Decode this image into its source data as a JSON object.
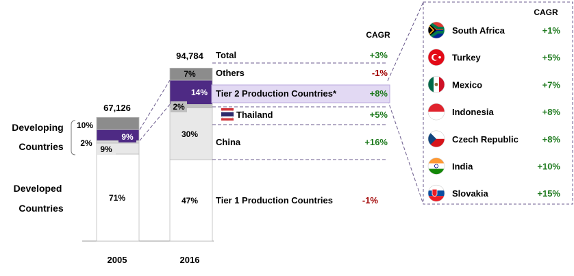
{
  "chart_data": {
    "type": "bar",
    "stacked": true,
    "categories": [
      "2005",
      "2016"
    ],
    "totals": [
      67126,
      94784
    ],
    "total_labels": [
      "67,126",
      "94,784"
    ],
    "segments_2005": [
      {
        "name": "Developed Countries",
        "value_pct": 71,
        "label": "71%",
        "color": "#ffffff"
      },
      {
        "name": "China",
        "value_pct": 9,
        "label": "9%",
        "color": "#e8e8e8"
      },
      {
        "name": "Thailand",
        "value_pct": 2,
        "label": "2%",
        "color": "#d9d9d9"
      },
      {
        "name": "Tier 2 Production Countries",
        "value_pct": 9,
        "label": "9%",
        "color": "#4e2a84"
      },
      {
        "name": "Others",
        "value_pct": 10,
        "label": "10%",
        "color": "#8c8c8c"
      }
    ],
    "segments_2016": [
      {
        "name": "Tier 1 Production Countries",
        "value_pct": 47,
        "label": "47%",
        "color": "#ffffff"
      },
      {
        "name": "China",
        "value_pct": 30,
        "label": "30%",
        "color": "#e8e8e8"
      },
      {
        "name": "Thailand",
        "value_pct": 2,
        "label": "2%",
        "color": "#bfbfbf"
      },
      {
        "name": "Tier 2 Production Countries",
        "value_pct": 14,
        "label": "14%",
        "color": "#4e2a84"
      },
      {
        "name": "Others",
        "value_pct": 7,
        "label": "7%",
        "color": "#8c8c8c"
      }
    ],
    "group_labels": {
      "developing": [
        "Developing",
        "Countries"
      ],
      "developed": [
        "Developed",
        "Countries"
      ]
    },
    "cagr_header": "CAGR",
    "cagr_rows": [
      {
        "name": "Total",
        "cagr": "+3%",
        "color": "#1e7a1e"
      },
      {
        "name": "Others",
        "cagr": "-1%",
        "color": "#a00000"
      },
      {
        "name": "Tier 2 Production Countries*",
        "cagr": "+8%",
        "color": "#1e7a1e"
      },
      {
        "name": "Thailand",
        "cagr": "+5%",
        "color": "#1e7a1e"
      },
      {
        "name": "China",
        "cagr": "+16%",
        "color": "#1e7a1e"
      },
      {
        "name": "Tier 1 Production Countries",
        "cagr": "-1%",
        "color": "#a00000"
      }
    ],
    "tier2_header": "CAGR",
    "tier2_countries": [
      {
        "name": "South Africa",
        "cagr": "+1%",
        "flag": "south-africa"
      },
      {
        "name": "Turkey",
        "cagr": "+5%",
        "flag": "turkey"
      },
      {
        "name": "Mexico",
        "cagr": "+7%",
        "flag": "mexico"
      },
      {
        "name": "Indonesia",
        "cagr": "+8%",
        "flag": "indonesia"
      },
      {
        "name": "Czech Republic",
        "cagr": "+8%",
        "flag": "czech-republic"
      },
      {
        "name": "India",
        "cagr": "+10%",
        "flag": "india"
      },
      {
        "name": "Slovakia",
        "cagr": "+15%",
        "flag": "slovakia"
      }
    ]
  },
  "colors": {
    "purple": "#4e2a84",
    "highlight": "#e2d9f3",
    "green": "#1e7a1e",
    "red": "#a00000",
    "dash": "#6a5a8c"
  }
}
